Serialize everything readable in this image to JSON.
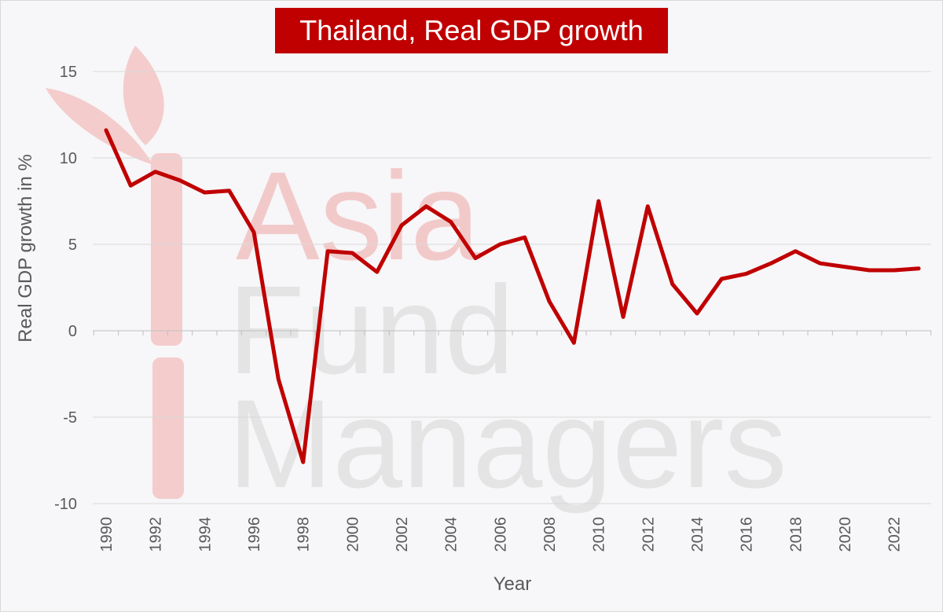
{
  "watermark": {
    "lines": [
      "Asia",
      "Fund",
      "Managers"
    ],
    "colors": {
      "asia": "#f2c9c9",
      "rest": "#e4e4e4",
      "logo": "#f4cccc"
    }
  },
  "chart_data": {
    "type": "line",
    "title": "Thailand, Real GDP growth",
    "xlabel": "Year",
    "ylabel": "Real GDP growth in %",
    "ylim": [
      -10,
      15
    ],
    "yticks": [
      15,
      10,
      5,
      0,
      -5,
      -10
    ],
    "xlim": [
      1990,
      2023
    ],
    "xticks": [
      1990,
      1992,
      1994,
      1996,
      1998,
      2000,
      2002,
      2004,
      2006,
      2008,
      2010,
      2012,
      2014,
      2016,
      2018,
      2020,
      2022
    ],
    "grid": "horizontal",
    "line_color": "#c00000",
    "series": [
      {
        "x": [
          1990,
          1991,
          1992,
          1993,
          1994,
          1995,
          1996,
          1997,
          1998,
          1999,
          2000,
          2001,
          2002,
          2003,
          2004,
          2005,
          2006,
          2007,
          2008,
          2009,
          2010,
          2011,
          2012,
          2013,
          2014,
          2015,
          2016,
          2017,
          2018,
          2019,
          2020,
          2021,
          2022,
          2023
        ],
        "values": [
          11.6,
          8.4,
          9.2,
          8.7,
          8.0,
          8.1,
          5.7,
          -2.8,
          -7.6,
          4.6,
          4.5,
          3.4,
          6.1,
          7.2,
          6.3,
          4.2,
          5.0,
          5.4,
          1.7,
          -0.7,
          7.5,
          0.8,
          7.2,
          2.7,
          1.0,
          3.0,
          3.3,
          3.9,
          4.6,
          3.9,
          3.7,
          3.5,
          3.5,
          3.6
        ]
      }
    ]
  }
}
